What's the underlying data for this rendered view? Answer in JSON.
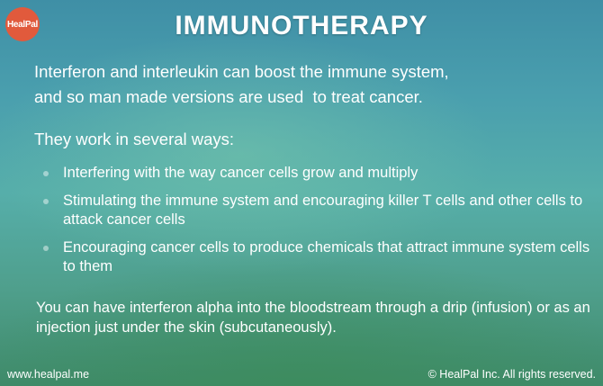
{
  "logo": {
    "text": "HealPal",
    "color": "#e15a3c"
  },
  "title": "IMMUNOTHERAPY",
  "intro": {
    "line1": "Interferon and interleukin can boost the immune system,",
    "line2": "and so man made versions are used  to treat cancer."
  },
  "lead": "They work in several ways:",
  "bullets": [
    {
      "text": "Interfering with the way cancer cells grow and multiply"
    },
    {
      "text": "Stimulating the immune system and encouraging killer T cells and other cells to attack cancer cells"
    },
    {
      "text": "Encouraging cancer cells to produce chemicals that attract immune system cells to them"
    }
  ],
  "closing": "You can have interferon alpha into the bloodstream through a drip (infusion) or as an injection just under the skin (subcutaneously).",
  "footer": {
    "website": "www.healpal.me",
    "copyright": "© HealPal Inc. All rights reserved."
  }
}
